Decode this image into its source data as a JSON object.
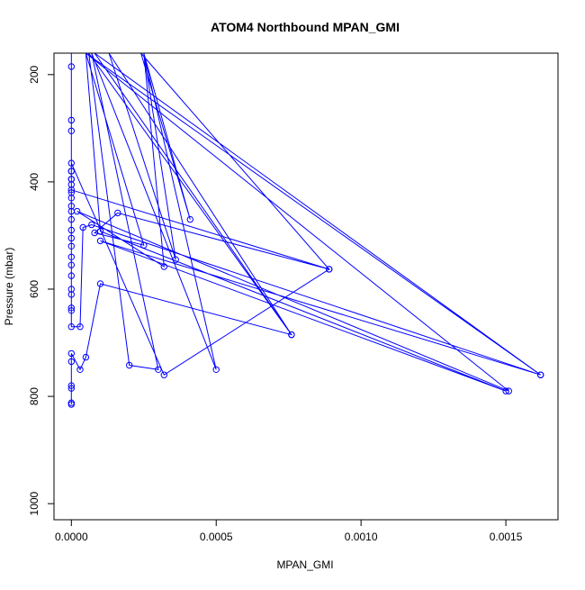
{
  "chart_data": {
    "type": "line",
    "title": "ATOM4 Northbound MPAN_GMI",
    "xlabel": "MPAN_GMI",
    "ylabel": "Pressure (mbar)",
    "xlim": [
      -6e-05,
      0.00168
    ],
    "ylim": [
      1030,
      160
    ],
    "y_reversed": true,
    "grid": false,
    "x_ticks": [
      {
        "value": 0,
        "label": "0.0000"
      },
      {
        "value": 0.0005,
        "label": "0.0005"
      },
      {
        "value": 0.001,
        "label": "0.0010"
      },
      {
        "value": 0.0015,
        "label": "0.0015"
      }
    ],
    "y_ticks": [
      {
        "value": 200,
        "label": "200"
      },
      {
        "value": 400,
        "label": "400"
      },
      {
        "value": 600,
        "label": "600"
      },
      {
        "value": 800,
        "label": "800"
      },
      {
        "value": 1000,
        "label": "1000"
      }
    ],
    "series": [
      {
        "color": "#0000ff",
        "marker": "open-circle",
        "points": [
          [
            0,
            815
          ],
          [
            0,
            812
          ],
          [
            0,
            785
          ],
          [
            0,
            780
          ],
          [
            0,
            735
          ],
          [
            0,
            720
          ],
          [
            3e-05,
            750
          ],
          [
            5e-05,
            727
          ],
          [
            0.0001,
            590
          ],
          [
            0.00076,
            685
          ],
          [
            8e-05,
            160
          ],
          [
            0.00162,
            760
          ],
          [
            5e-05,
            160
          ],
          [
            0.00151,
            790
          ],
          [
            2e-05,
            455
          ],
          [
            0.00032,
            558
          ],
          [
            0.00025,
            160
          ],
          [
            0.00036,
            545
          ],
          [
            0.00013,
            160
          ],
          [
            0.00076,
            685
          ],
          [
            6e-05,
            160
          ],
          [
            0.0002,
            742
          ],
          [
            0.0003,
            750
          ],
          [
            7e-05,
            160
          ],
          [
            0.0005,
            750
          ],
          [
            0.00025,
            160
          ],
          [
            0.00041,
            470
          ],
          [
            0.00024,
            160
          ],
          [
            0.00089,
            563
          ],
          [
            0,
            415
          ],
          [
            0,
            405
          ],
          [
            0,
            395
          ],
          [
            0,
            380
          ],
          [
            0,
            365
          ],
          [
            0.00032,
            760
          ],
          [
            0.00089,
            563
          ],
          [
            0.00016,
            458
          ],
          [
            8e-05,
            495
          ],
          [
            0.00025,
            518
          ],
          [
            5e-05,
            160
          ],
          [
            0.0001,
            492
          ],
          [
            0.0015,
            790
          ],
          [
            0.0001,
            510
          ],
          [
            0.00162,
            760
          ],
          [
            7e-05,
            480
          ],
          [
            4e-05,
            485
          ],
          [
            3e-05,
            670
          ],
          [
            0,
            670
          ],
          [
            0,
            640
          ],
          [
            0,
            635
          ],
          [
            0,
            610
          ],
          [
            0,
            600
          ],
          [
            0,
            575
          ],
          [
            0,
            555
          ],
          [
            0,
            540
          ],
          [
            0,
            520
          ],
          [
            0,
            505
          ],
          [
            0,
            490
          ],
          [
            0,
            470
          ],
          [
            0,
            455
          ],
          [
            0,
            445
          ],
          [
            0,
            430
          ],
          [
            0,
            420
          ],
          [
            0,
            395
          ],
          [
            0,
            380
          ],
          [
            0,
            305
          ],
          [
            0,
            285
          ],
          [
            0,
            185
          ],
          [
            0,
            160
          ]
        ]
      }
    ]
  }
}
